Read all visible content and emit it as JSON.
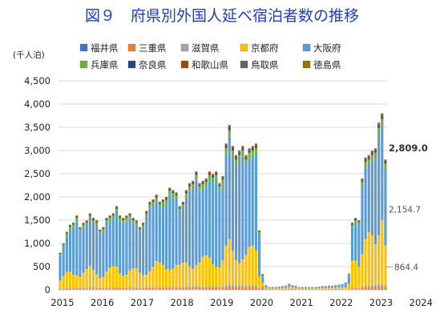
{
  "chart_data": {
    "type": "bar",
    "stacked": true,
    "title": "図９　府県別外国人延べ宿泊者数の推移",
    "unit_label": "(千人泊)",
    "ylim": [
      0,
      4500
    ],
    "yticks": [
      "0",
      "500",
      "1,000",
      "1,500",
      "2,000",
      "2,500",
      "3,000",
      "3,500",
      "4,000",
      "4,500"
    ],
    "ytick_values": [
      0,
      500,
      1000,
      1500,
      2000,
      2500,
      3000,
      3500,
      4000,
      4500
    ],
    "x_tick_labels": [
      "2015",
      "2016",
      "2017",
      "2018",
      "2019",
      "2020",
      "2021",
      "2022",
      "2023",
      "2024"
    ],
    "x_start": "2015-01",
    "x_end": "2024-03",
    "grid": true,
    "legend_position": "top",
    "series": [
      {
        "name": "福井県",
        "color": "#4472c4"
      },
      {
        "name": "三重県",
        "color": "#ed7d31"
      },
      {
        "name": "滋賀県",
        "color": "#a5a5a5"
      },
      {
        "name": "京都府",
        "color": "#ffc000"
      },
      {
        "name": "大阪府",
        "color": "#5b9bd5"
      },
      {
        "name": "兵庫県",
        "color": "#70ad47"
      },
      {
        "name": "奈良県",
        "color": "#264478"
      },
      {
        "name": "和歌山県",
        "color": "#9e480e"
      },
      {
        "name": "鳥取県",
        "color": "#636363"
      },
      {
        "name": "徳島県",
        "color": "#997300"
      }
    ],
    "monthly_totals": [
      800,
      1000,
      1250,
      1400,
      1450,
      1600,
      1350,
      1450,
      1500,
      1650,
      1550,
      1500,
      1300,
      1350,
      1550,
      1600,
      1650,
      1800,
      1600,
      1550,
      1600,
      1650,
      1550,
      1500,
      1350,
      1450,
      1700,
      1900,
      1950,
      2050,
      1900,
      1950,
      2000,
      2200,
      2150,
      2100,
      1800,
      1900,
      2150,
      2300,
      2350,
      2550,
      2300,
      2350,
      2400,
      2550,
      2500,
      2550,
      2300,
      2450,
      3150,
      3550,
      3100,
      2900,
      3000,
      3100,
      2900,
      3050,
      3100,
      3150,
      1280,
      340,
      100,
      60,
      60,
      60,
      70,
      80,
      90,
      130,
      100,
      90,
      60,
      60,
      60,
      60,
      60,
      60,
      70,
      80,
      80,
      90,
      90,
      100,
      110,
      120,
      160,
      350,
      1450,
      1550,
      1500,
      2400,
      2850,
      2900,
      3000,
      3050,
      3600,
      3800,
      2809
    ],
    "annotations": [
      {
        "label": "2,809.0",
        "series": "total",
        "value": 2809.0
      },
      {
        "label": "2,154.7",
        "series": "大阪府",
        "value": 2154.7
      },
      {
        "label": "864.4",
        "series": "京都府",
        "value": 864.4
      }
    ]
  }
}
